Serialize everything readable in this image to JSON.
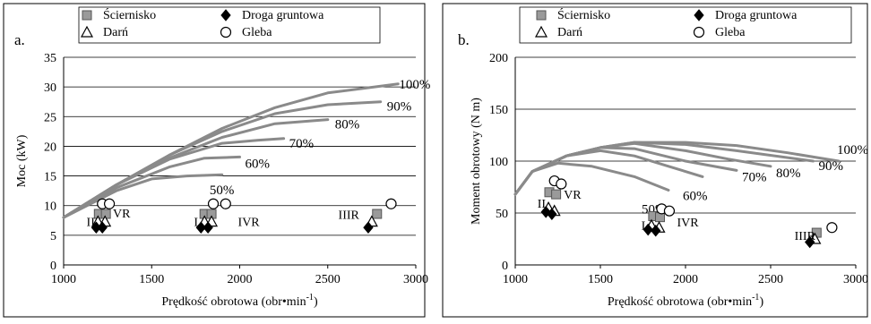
{
  "chart_data": [
    {
      "panel_label": "a.",
      "type": "line",
      "xlabel": "Prędkość obrotowa (obr•min",
      "xlabel_sup": "-1",
      "xlabel_close": ")",
      "ylabel": "Moc (kW)",
      "xlim": [
        1000,
        3000
      ],
      "ylim": [
        0,
        35
      ],
      "x_ticks": [
        "1000",
        "1500",
        "2000",
        "2500",
        "3000"
      ],
      "y_ticks": [
        "0",
        "5",
        "10",
        "15",
        "20",
        "25",
        "30",
        "35"
      ],
      "legend": [
        {
          "marker": "square",
          "label": "Ścierniskо"
        },
        {
          "marker": "diamond",
          "label": "Droga gruntowa"
        },
        {
          "marker": "triangle",
          "label": "Darń"
        },
        {
          "marker": "circle",
          "label": "Gleba"
        }
      ],
      "series": [
        {
          "name": "100%",
          "x": [
            1000,
            1300,
            1600,
            1900,
            2200,
            2500,
            2900
          ],
          "y": [
            8,
            13.5,
            18.5,
            23,
            26.5,
            29,
            30.5
          ]
        },
        {
          "name": "90%",
          "x": [
            1000,
            1300,
            1600,
            1900,
            2200,
            2500,
            2800
          ],
          "y": [
            8,
            13.5,
            18.5,
            22.5,
            25.5,
            27,
            27.5
          ]
        },
        {
          "name": "80%",
          "x": [
            1000,
            1300,
            1600,
            1900,
            2200,
            2500
          ],
          "y": [
            8,
            13.5,
            18,
            21.5,
            23.8,
            24.5
          ]
        },
        {
          "name": "70%",
          "x": [
            1000,
            1300,
            1600,
            1900,
            2100,
            2250
          ],
          "y": [
            8,
            13.5,
            17.8,
            20.5,
            21,
            21.3
          ]
        },
        {
          "name": "60%",
          "x": [
            1000,
            1300,
            1600,
            1800,
            2000
          ],
          "y": [
            8,
            13,
            16.5,
            18,
            18.2
          ]
        },
        {
          "name": "50%",
          "x": [
            1000,
            1300,
            1500,
            1700,
            1900
          ],
          "y": [
            8,
            12.5,
            14.5,
            15,
            15.2
          ]
        }
      ],
      "points": [
        {
          "marker": "square",
          "x": 1200,
          "y": 8.6
        },
        {
          "marker": "square",
          "x": 1240,
          "y": 8.6
        },
        {
          "marker": "square",
          "x": 1800,
          "y": 8.6
        },
        {
          "marker": "square",
          "x": 1840,
          "y": 8.6
        },
        {
          "marker": "square",
          "x": 2780,
          "y": 8.6
        },
        {
          "marker": "circle",
          "x": 1220,
          "y": 10.3
        },
        {
          "marker": "circle",
          "x": 1260,
          "y": 10.3
        },
        {
          "marker": "circle",
          "x": 1850,
          "y": 10.3
        },
        {
          "marker": "circle",
          "x": 1920,
          "y": 10.3
        },
        {
          "marker": "circle",
          "x": 2860,
          "y": 10.3
        },
        {
          "marker": "triangle",
          "x": 1195,
          "y": 7.3
        },
        {
          "marker": "triangle",
          "x": 1235,
          "y": 7.3
        },
        {
          "marker": "triangle",
          "x": 1800,
          "y": 7.3
        },
        {
          "marker": "triangle",
          "x": 1840,
          "y": 7.3
        },
        {
          "marker": "triangle",
          "x": 2750,
          "y": 7.3
        },
        {
          "marker": "diamond",
          "x": 1185,
          "y": 6.3
        },
        {
          "marker": "diamond",
          "x": 1220,
          "y": 6.3
        },
        {
          "marker": "diamond",
          "x": 1780,
          "y": 6.3
        },
        {
          "marker": "diamond",
          "x": 1820,
          "y": 6.3
        },
        {
          "marker": "diamond",
          "x": 2730,
          "y": 6.3
        }
      ],
      "point_labels": [
        {
          "text": "II",
          "x": 1130,
          "y": 6.6
        },
        {
          "text": "VR",
          "x": 1280,
          "y": 8.0
        },
        {
          "text": "I",
          "x": 1740,
          "y": 6.6
        },
        {
          "text": "IVR",
          "x": 1990,
          "y": 6.6
        },
        {
          "text": "IIIR",
          "x": 2560,
          "y": 7.8
        }
      ]
    },
    {
      "panel_label": "b.",
      "type": "line",
      "xlabel": "Prędkość obrotowa (obr•min",
      "xlabel_sup": "-1",
      "xlabel_close": ")",
      "ylabel": "Moment obrotowy (N m)",
      "xlim": [
        1000,
        3000
      ],
      "ylim": [
        0,
        200
      ],
      "x_ticks": [
        "1000",
        "1500",
        "2000",
        "2500",
        "3000"
      ],
      "y_ticks": [
        "0",
        "50",
        "100",
        "150",
        "200"
      ],
      "legend": [
        {
          "marker": "square",
          "label": "Ściernisko"
        },
        {
          "marker": "diamond",
          "label": "Droga gruntowa"
        },
        {
          "marker": "triangle",
          "label": "Darń"
        },
        {
          "marker": "circle",
          "label": "Gleba"
        }
      ],
      "series": [
        {
          "name": "100%",
          "x": [
            1000,
            1100,
            1300,
            1500,
            1700,
            2000,
            2300,
            2600,
            2900
          ],
          "y": [
            68,
            90,
            105,
            113,
            118,
            118,
            115,
            108,
            100
          ]
        },
        {
          "name": "90%",
          "x": [
            1000,
            1100,
            1300,
            1500,
            1700,
            2000,
            2300,
            2750
          ],
          "y": [
            68,
            90,
            105,
            113,
            118,
            116,
            110,
            100
          ]
        },
        {
          "name": "80%",
          "x": [
            1000,
            1100,
            1300,
            1500,
            1700,
            2000,
            2250,
            2500
          ],
          "y": [
            68,
            90,
            105,
            113,
            117,
            110,
            102,
            95
          ]
        },
        {
          "name": "70%",
          "x": [
            1000,
            1100,
            1300,
            1500,
            1700,
            2000,
            2300
          ],
          "y": [
            68,
            90,
            105,
            113,
            112,
            100,
            91
          ]
        },
        {
          "name": "60%",
          "x": [
            1000,
            1100,
            1300,
            1500,
            1700,
            1900,
            2100
          ],
          "y": [
            68,
            90,
            105,
            110,
            105,
            95,
            85
          ]
        },
        {
          "name": "50%",
          "x": [
            1000,
            1100,
            1250,
            1450,
            1700,
            1900
          ],
          "y": [
            68,
            90,
            98,
            95,
            85,
            72
          ]
        }
      ],
      "points": [
        {
          "marker": "square",
          "x": 1200,
          "y": 70
        },
        {
          "marker": "square",
          "x": 1240,
          "y": 68
        },
        {
          "marker": "square",
          "x": 1810,
          "y": 47
        },
        {
          "marker": "square",
          "x": 1850,
          "y": 46
        },
        {
          "marker": "square",
          "x": 2770,
          "y": 31
        },
        {
          "marker": "circle",
          "x": 1230,
          "y": 81
        },
        {
          "marker": "circle",
          "x": 1270,
          "y": 78
        },
        {
          "marker": "circle",
          "x": 1860,
          "y": 54
        },
        {
          "marker": "circle",
          "x": 1905,
          "y": 52
        },
        {
          "marker": "circle",
          "x": 2860,
          "y": 36
        },
        {
          "marker": "triangle",
          "x": 1195,
          "y": 55
        },
        {
          "marker": "triangle",
          "x": 1230,
          "y": 52
        },
        {
          "marker": "triangle",
          "x": 1800,
          "y": 38
        },
        {
          "marker": "triangle",
          "x": 1845,
          "y": 36
        },
        {
          "marker": "triangle",
          "x": 2760,
          "y": 25
        },
        {
          "marker": "diamond",
          "x": 1180,
          "y": 51
        },
        {
          "marker": "diamond",
          "x": 1215,
          "y": 49
        },
        {
          "marker": "diamond",
          "x": 1780,
          "y": 34
        },
        {
          "marker": "diamond",
          "x": 1825,
          "y": 33
        },
        {
          "marker": "diamond",
          "x": 2730,
          "y": 22
        }
      ],
      "point_labels": [
        {
          "text": "II",
          "x": 1130,
          "y": 55
        },
        {
          "text": "VR",
          "x": 1285,
          "y": 64
        },
        {
          "text": "I",
          "x": 1740,
          "y": 34
        },
        {
          "text": "IVR",
          "x": 1950,
          "y": 37
        },
        {
          "text": "IIIR",
          "x": 2640,
          "y": 24
        }
      ]
    }
  ]
}
